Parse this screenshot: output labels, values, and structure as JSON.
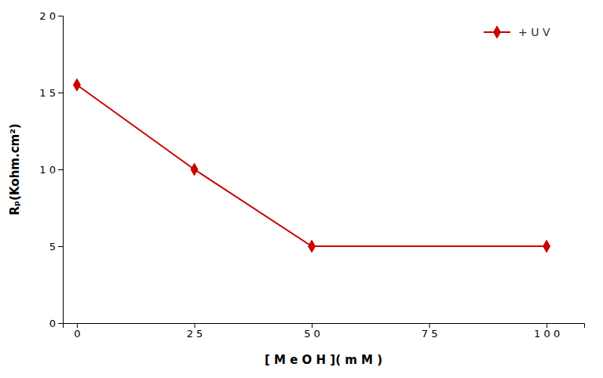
{
  "chart_data": {
    "type": "line",
    "x": [
      0,
      25,
      50,
      100
    ],
    "series": [
      {
        "name": "+ U V",
        "color": "#cc0000",
        "marker": "diamond",
        "values": [
          15.5,
          10,
          5,
          5
        ]
      }
    ],
    "xlabel": "[ M e O H ]( m M )",
    "ylabel": "Rₚ(Kohm.cm²)",
    "xlim": [
      -3,
      108
    ],
    "ylim": [
      0,
      20
    ],
    "xticks": [
      0,
      {
        "value": 25,
        "label": "2 5"
      },
      {
        "value": 50,
        "label": "5 0"
      },
      {
        "value": 75,
        "label": "7 5"
      },
      {
        "value": 100,
        "label": "1 0 0"
      }
    ],
    "yticks": [
      0,
      5,
      {
        "value": 10,
        "label": "1 0"
      },
      {
        "value": 15,
        "label": "1 5"
      },
      {
        "value": 20,
        "label": "2 0"
      }
    ],
    "legend": "upper right",
    "grid": false
  }
}
